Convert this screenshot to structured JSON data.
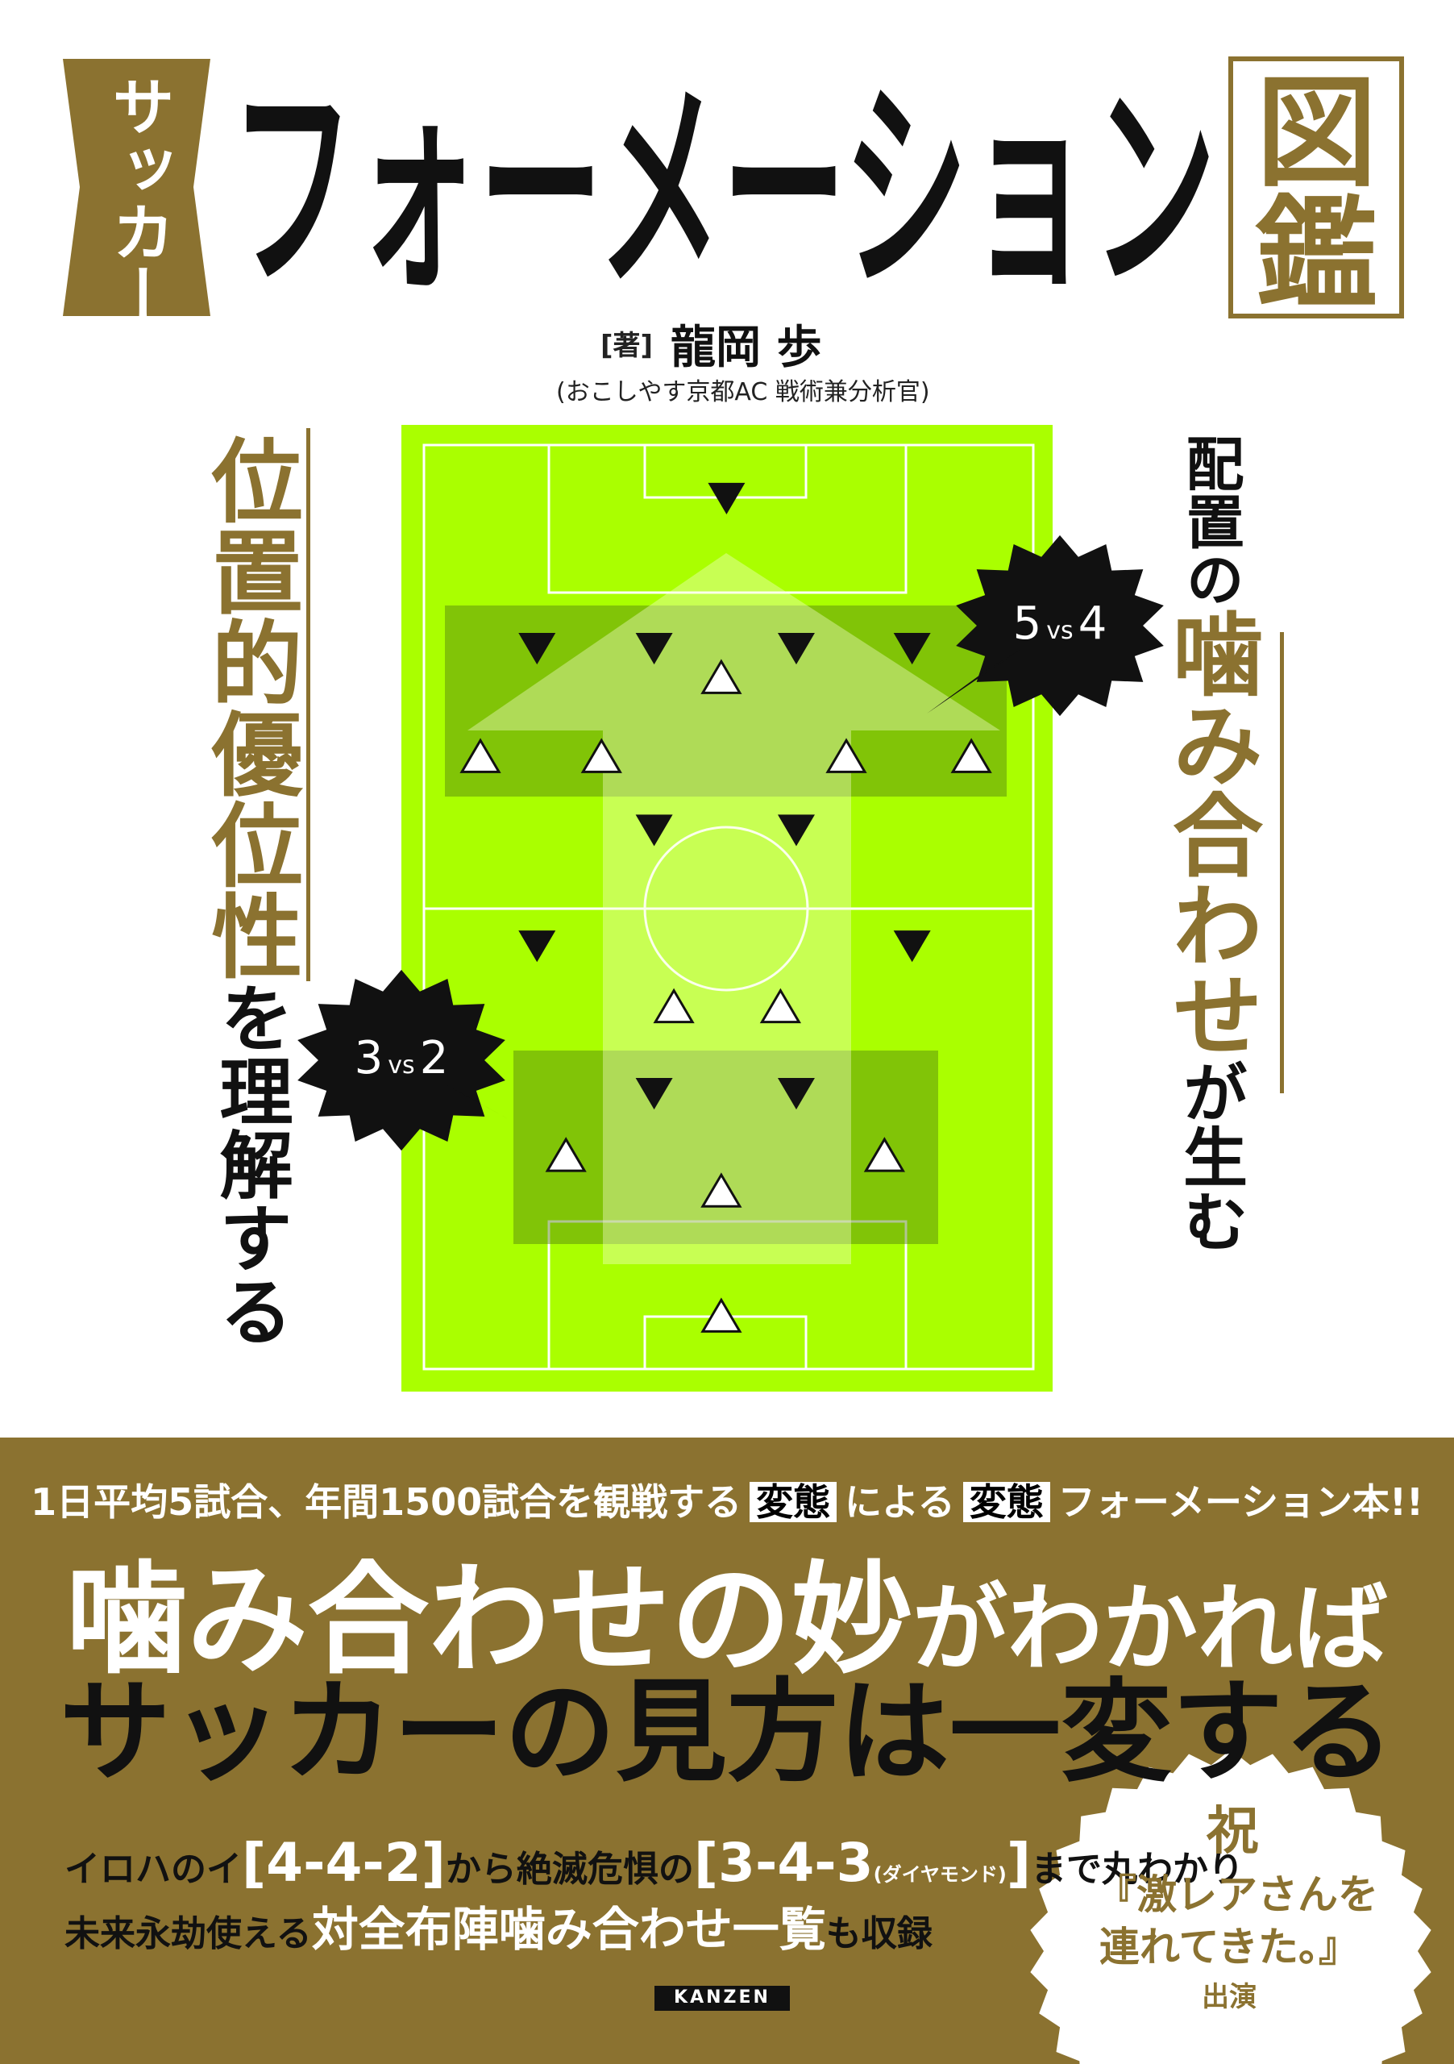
{
  "header": {
    "badge": "サッカー",
    "title": "フォーメーション",
    "title_suffix": "図鑑",
    "author_role": "[著]",
    "author": "龍岡 歩",
    "author_affiliation": "(おこしやす京都AC 戦術兼分析官)"
  },
  "left_tagline": {
    "emphasis": "位置的優位性",
    "rest": "を理解する"
  },
  "right_tagline": {
    "lead": "配置の",
    "emphasis": "噛み合わせ",
    "rest": "が生む"
  },
  "diagram": {
    "callouts": [
      {
        "left": "5",
        "vs": "vs",
        "right": "4"
      },
      {
        "left": "3",
        "vs": "vs",
        "right": "2"
      }
    ]
  },
  "band": {
    "intro": [
      "1日平均5試合、年間1500試合を観戦する",
      "変態",
      "による",
      "変態",
      "フォーメーション本!!"
    ],
    "headline1": [
      "噛み合わせの妙",
      "がわかれば"
    ],
    "headline2": "サッカーの見方は一変する",
    "detail1": [
      "イロハのイ",
      "[4-4-2]",
      "から絶滅危惧の",
      "[3-4-3",
      "(ダイヤモンド)",
      "]",
      "まで丸わかり"
    ],
    "detail2": [
      "未来永劫使える",
      "対全布陣噛み合わせ一覧",
      "も収録"
    ],
    "publisher": "KANZEN"
  },
  "seal": {
    "mark": "祝",
    "lines": [
      "『激レアさんを",
      "連れてきた。』",
      "出演"
    ]
  }
}
